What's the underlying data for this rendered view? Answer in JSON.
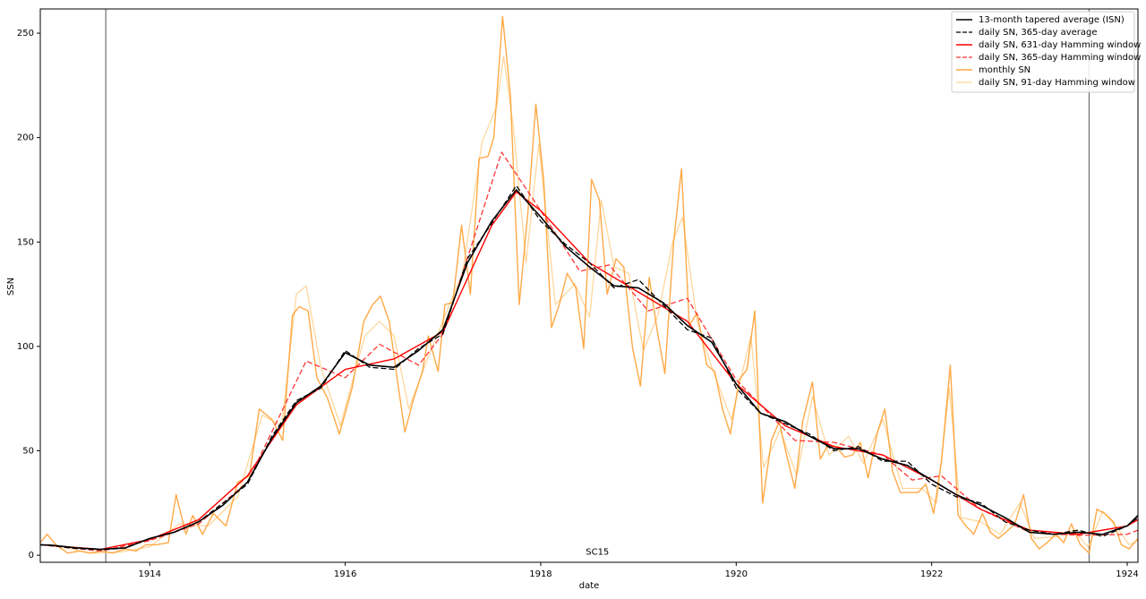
{
  "chart_data": {
    "type": "line",
    "x_label": "date",
    "y_label": "SSN",
    "xlim": [
      1912.88,
      1924.11
    ],
    "ylim": [
      -3.4,
      261.6
    ],
    "xticks": [
      1914,
      1916,
      1918,
      1920,
      1922,
      1924
    ],
    "yticks": [
      0,
      50,
      100,
      150,
      200,
      250
    ],
    "grid": false,
    "legend": "upper right",
    "vlines": [
      1913.55,
      1923.61
    ],
    "annotations": [
      {
        "text": "SC15",
        "x": 1918.58,
        "y": 1.5
      }
    ],
    "series": [
      {
        "name": "13-month tapered average (ISN)",
        "color": "#000000",
        "linestyle": "solid",
        "width": 1.6,
        "opacity": 1,
        "x": [
          1912.88,
          1913.0,
          1913.25,
          1913.5,
          1913.75,
          1914.0,
          1914.25,
          1914.5,
          1914.75,
          1915.0,
          1915.25,
          1915.5,
          1915.75,
          1916.0,
          1916.25,
          1916.5,
          1916.75,
          1917.0,
          1917.25,
          1917.5,
          1917.75,
          1918.0,
          1918.25,
          1918.5,
          1918.75,
          1919.0,
          1919.25,
          1919.5,
          1919.75,
          1920.0,
          1920.25,
          1920.5,
          1920.75,
          1921.0,
          1921.25,
          1921.5,
          1921.75,
          1922.0,
          1922.25,
          1922.5,
          1922.75,
          1923.0,
          1923.25,
          1923.5,
          1923.75,
          1924.0,
          1924.11
        ],
        "values": [
          5,
          4.8,
          3.5,
          2.8,
          3.5,
          8,
          11,
          16,
          24,
          35,
          56,
          73,
          81,
          97,
          91,
          90,
          98,
          108,
          140,
          160,
          175,
          162,
          148,
          138,
          129,
          128,
          121,
          110,
          102,
          82,
          68,
          64,
          57,
          51,
          51,
          46,
          43,
          36,
          29,
          24,
          18,
          11,
          10,
          11,
          10,
          14,
          19
        ]
      },
      {
        "name": "daily SN, 365-day average",
        "color": "#000000",
        "linestyle": "dashed",
        "width": 1.3,
        "opacity": 1,
        "x": [
          1912.88,
          1913.0,
          1913.25,
          1913.5,
          1913.75,
          1914.0,
          1914.25,
          1914.5,
          1914.75,
          1915.0,
          1915.25,
          1915.5,
          1915.75,
          1916.0,
          1916.25,
          1916.5,
          1916.75,
          1917.0,
          1917.25,
          1917.5,
          1917.75,
          1918.0,
          1918.25,
          1918.5,
          1918.75,
          1919.0,
          1919.25,
          1919.5,
          1919.75,
          1920.0,
          1920.25,
          1920.5,
          1920.75,
          1921.0,
          1921.25,
          1921.5,
          1921.75,
          1922.0,
          1922.25,
          1922.5,
          1922.75,
          1923.0,
          1923.25,
          1923.5,
          1923.75,
          1924.0,
          1924.11
        ],
        "values": [
          5,
          4.5,
          3.2,
          2.6,
          3.4,
          8,
          11,
          16,
          25,
          34,
          57,
          74,
          80,
          98,
          90,
          89,
          99,
          106,
          142,
          159,
          177,
          160,
          149,
          140,
          128,
          132,
          120,
          108,
          104,
          80,
          68,
          63,
          58,
          50,
          52,
          45,
          45,
          34,
          28,
          25,
          16,
          12,
          10,
          12,
          9,
          14,
          18
        ]
      },
      {
        "name": "daily SN, 631-day Hamming window",
        "color": "#ff0000",
        "linestyle": "solid",
        "width": 1.4,
        "opacity": 1,
        "x": [
          1912.88,
          1913.5,
          1914.0,
          1914.5,
          1915.0,
          1915.5,
          1916.0,
          1916.5,
          1917.0,
          1917.5,
          1917.75,
          1918.0,
          1918.5,
          1919.0,
          1919.5,
          1920.0,
          1920.5,
          1921.0,
          1921.5,
          1922.0,
          1922.5,
          1923.0,
          1923.5,
          1924.0,
          1924.11
        ],
        "values": [
          5,
          2.8,
          7.5,
          17,
          38,
          72,
          89,
          94,
          107,
          158,
          174,
          165,
          140,
          126,
          112,
          82,
          62,
          52,
          48,
          36,
          22,
          12,
          10,
          14,
          17
        ]
      },
      {
        "name": "daily SN, 365-day Hamming window",
        "color": "#ff3333",
        "linestyle": "dashed",
        "width": 1.3,
        "opacity": 1,
        "x": [
          1912.88,
          1913.5,
          1914.0,
          1914.5,
          1915.0,
          1915.6,
          1916.0,
          1916.35,
          1916.75,
          1917.0,
          1917.6,
          1918.0,
          1918.4,
          1918.7,
          1919.1,
          1919.5,
          1920.0,
          1920.6,
          1921.0,
          1921.5,
          1921.8,
          1922.1,
          1922.5,
          1923.0,
          1923.5,
          1924.0,
          1924.11
        ],
        "values": [
          5,
          2,
          7,
          15,
          35,
          93,
          85,
          101,
          91,
          106,
          193,
          165,
          136,
          139,
          117,
          123,
          84,
          55,
          54,
          48,
          36,
          38,
          22,
          11,
          9.5,
          10,
          12
        ]
      },
      {
        "name": "monthly SN",
        "color": "#ffa033",
        "linestyle": "solid",
        "width": 1.4,
        "opacity": 0.9,
        "x": [
          1912.88,
          1912.95,
          1913.04,
          1913.16,
          1913.28,
          1913.39,
          1913.5,
          1913.62,
          1913.75,
          1913.86,
          1913.96,
          1914.07,
          1914.19,
          1914.27,
          1914.37,
          1914.44,
          1914.54,
          1914.65,
          1914.78,
          1914.9,
          1915.02,
          1915.12,
          1915.25,
          1915.36,
          1915.46,
          1915.53,
          1915.62,
          1915.71,
          1915.82,
          1915.94,
          1916.07,
          1916.19,
          1916.28,
          1916.36,
          1916.45,
          1916.53,
          1916.61,
          1916.7,
          1916.79,
          1916.85,
          1916.95,
          1917.02,
          1917.1,
          1917.19,
          1917.28,
          1917.37,
          1917.46,
          1917.52,
          1917.61,
          1917.69,
          1917.78,
          1917.87,
          1917.95,
          1918.03,
          1918.11,
          1918.19,
          1918.27,
          1918.36,
          1918.44,
          1918.52,
          1918.6,
          1918.68,
          1918.77,
          1918.85,
          1918.94,
          1919.02,
          1919.11,
          1919.19,
          1919.27,
          1919.36,
          1919.44,
          1919.52,
          1919.6,
          1919.7,
          1919.78,
          1919.86,
          1919.94,
          1920.03,
          1920.11,
          1920.19,
          1920.27,
          1920.36,
          1920.44,
          1920.52,
          1920.6,
          1920.68,
          1920.78,
          1920.86,
          1920.94,
          1921.02,
          1921.11,
          1921.19,
          1921.27,
          1921.35,
          1921.44,
          1921.52,
          1921.6,
          1921.68,
          1921.77,
          1921.86,
          1921.94,
          1922.02,
          1922.1,
          1922.19,
          1922.27,
          1922.35,
          1922.43,
          1922.52,
          1922.6,
          1922.68,
          1922.76,
          1922.85,
          1922.94,
          1923.02,
          1923.1,
          1923.18,
          1923.27,
          1923.35,
          1923.43,
          1923.52,
          1923.61,
          1923.69,
          1923.77,
          1923.86,
          1923.94,
          1924.02,
          1924.11
        ],
        "values": [
          6,
          10,
          5,
          1,
          2,
          1,
          2,
          1,
          3,
          2,
          5,
          5,
          6,
          29,
          10,
          19,
          10,
          20,
          14,
          35,
          38,
          70,
          65,
          55,
          115,
          119,
          117,
          85,
          75,
          58,
          80,
          112,
          120,
          124,
          112,
          85,
          59,
          75,
          88,
          105,
          88,
          120,
          121,
          158,
          125,
          190,
          191,
          200,
          258,
          220,
          120,
          165,
          216,
          180,
          109,
          120,
          135,
          128,
          99,
          180,
          170,
          125,
          142,
          138,
          99,
          81,
          133,
          108,
          87,
          150,
          185,
          110,
          116,
          91,
          88,
          70,
          58,
          84,
          89,
          117,
          25,
          55,
          64,
          47,
          32,
          64,
          83,
          46,
          53,
          52,
          47,
          48,
          54,
          37,
          58,
          70,
          40,
          30,
          30,
          30,
          34,
          20,
          45,
          91,
          19,
          14,
          10,
          20,
          11,
          8,
          11,
          15,
          29,
          8,
          3,
          6,
          10,
          6,
          15,
          5,
          1,
          22,
          20,
          16,
          5,
          3,
          8
        ]
      },
      {
        "name": "daily SN, 91-day Hamming window",
        "color": "#ffcf8a",
        "linestyle": "solid",
        "width": 1.2,
        "opacity": 0.9,
        "x": [
          1912.88,
          1913.1,
          1913.4,
          1913.7,
          1914.0,
          1914.3,
          1914.6,
          1914.9,
          1915.15,
          1915.35,
          1915.5,
          1915.6,
          1915.75,
          1915.95,
          1916.2,
          1916.35,
          1916.5,
          1916.65,
          1916.85,
          1917.05,
          1917.2,
          1917.4,
          1917.55,
          1917.62,
          1917.72,
          1917.85,
          1917.98,
          1918.15,
          1918.35,
          1918.5,
          1918.62,
          1918.75,
          1918.9,
          1919.05,
          1919.2,
          1919.35,
          1919.45,
          1919.6,
          1919.75,
          1919.95,
          1920.15,
          1920.28,
          1920.45,
          1920.62,
          1920.78,
          1920.95,
          1921.15,
          1921.3,
          1921.5,
          1921.7,
          1921.9,
          1922.05,
          1922.18,
          1922.3,
          1922.5,
          1922.7,
          1922.9,
          1923.05,
          1923.3,
          1923.45,
          1923.6,
          1923.75,
          1923.9,
          1924.02,
          1924.11
        ],
        "values": [
          5,
          4,
          1,
          1.5,
          4,
          15,
          14,
          28,
          67,
          62,
          125,
          129,
          90,
          62,
          105,
          112,
          105,
          70,
          95,
          118,
          135,
          198,
          215,
          239,
          205,
          140,
          197,
          120,
          130,
          114,
          170,
          138,
          135,
          98,
          115,
          150,
          162,
          112,
          90,
          65,
          105,
          42,
          60,
          38,
          76,
          48,
          57,
          44,
          65,
          32,
          32,
          25,
          80,
          18,
          16,
          10,
          25,
          8,
          9,
          12,
          4,
          21,
          13,
          5,
          7
        ]
      }
    ]
  }
}
